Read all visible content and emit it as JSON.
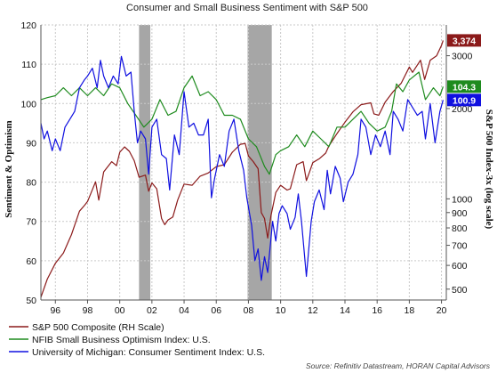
{
  "chart_data": {
    "type": "line",
    "title": "Consumer and Small Business Sentiment with S&P 500",
    "ylabel_left": "Sentiment & Optimism",
    "ylabel_right": "S&P 500 Index-3x (log scale)",
    "x_ticks": [
      "96",
      "98",
      "00",
      "02",
      "04",
      "06",
      "08",
      "10",
      "12",
      "14",
      "16",
      "18",
      "20"
    ],
    "x_range": [
      1995.1,
      2020.3
    ],
    "y_left_ticks": [
      50,
      60,
      70,
      80,
      90,
      100,
      110,
      120
    ],
    "y_left_range": [
      50,
      120
    ],
    "y_right_ticks": [
      500,
      600,
      700,
      800,
      900,
      1000,
      2000,
      3000
    ],
    "y_right_range": [
      460,
      3800
    ],
    "y_right_scale": "log",
    "grid": true,
    "recessions": [
      [
        2001.2,
        2001.9
      ],
      [
        2007.95,
        2009.45
      ]
    ],
    "series": [
      {
        "name": "S&P 500 Composite (RH Scale)",
        "axis": "right",
        "color": "#8B1A1A",
        "last_value_label": "3,374",
        "points": [
          [
            1995.1,
            470
          ],
          [
            1995.5,
            540
          ],
          [
            1996.0,
            610
          ],
          [
            1996.5,
            660
          ],
          [
            1997.0,
            760
          ],
          [
            1997.5,
            910
          ],
          [
            1997.8,
            950
          ],
          [
            1998.0,
            980
          ],
          [
            1998.5,
            1140
          ],
          [
            1998.7,
            990
          ],
          [
            1999.0,
            1230
          ],
          [
            1999.5,
            1330
          ],
          [
            1999.8,
            1290
          ],
          [
            2000.0,
            1430
          ],
          [
            2000.3,
            1490
          ],
          [
            2000.6,
            1440
          ],
          [
            2000.9,
            1340
          ],
          [
            2001.2,
            1180
          ],
          [
            2001.6,
            1200
          ],
          [
            2001.8,
            1060
          ],
          [
            2002.0,
            1130
          ],
          [
            2002.3,
            1080
          ],
          [
            2002.6,
            860
          ],
          [
            2002.8,
            820
          ],
          [
            2003.0,
            850
          ],
          [
            2003.3,
            870
          ],
          [
            2003.6,
            990
          ],
          [
            2004.0,
            1120
          ],
          [
            2004.5,
            1110
          ],
          [
            2005.0,
            1190
          ],
          [
            2005.5,
            1220
          ],
          [
            2006.0,
            1280
          ],
          [
            2006.5,
            1300
          ],
          [
            2007.0,
            1430
          ],
          [
            2007.5,
            1520
          ],
          [
            2007.8,
            1530
          ],
          [
            2008.0,
            1390
          ],
          [
            2008.3,
            1330
          ],
          [
            2008.6,
            1260
          ],
          [
            2008.8,
            900
          ],
          [
            2009.0,
            860
          ],
          [
            2009.2,
            740
          ],
          [
            2009.4,
            880
          ],
          [
            2009.7,
            1050
          ],
          [
            2010.0,
            1110
          ],
          [
            2010.4,
            1070
          ],
          [
            2010.6,
            1080
          ],
          [
            2011.0,
            1300
          ],
          [
            2011.4,
            1330
          ],
          [
            2011.6,
            1150
          ],
          [
            2011.8,
            1230
          ],
          [
            2012.0,
            1320
          ],
          [
            2012.4,
            1360
          ],
          [
            2012.8,
            1420
          ],
          [
            2013.0,
            1500
          ],
          [
            2013.5,
            1650
          ],
          [
            2014.0,
            1800
          ],
          [
            2014.5,
            1950
          ],
          [
            2015.0,
            2060
          ],
          [
            2015.6,
            2090
          ],
          [
            2015.8,
            1920
          ],
          [
            2016.1,
            1900
          ],
          [
            2016.5,
            2100
          ],
          [
            2017.0,
            2280
          ],
          [
            2017.5,
            2430
          ],
          [
            2018.0,
            2750
          ],
          [
            2018.2,
            2640
          ],
          [
            2018.7,
            2900
          ],
          [
            2018.95,
            2500
          ],
          [
            2019.3,
            2900
          ],
          [
            2019.7,
            3000
          ],
          [
            2020.0,
            3250
          ],
          [
            2020.1,
            3374
          ]
        ]
      },
      {
        "name": "NFIB Small Business Optimism Index: U.S.",
        "axis": "left",
        "color": "#1E8B1E",
        "last_value_label": "104.3",
        "points": [
          [
            1995.1,
            101
          ],
          [
            1995.5,
            101.5
          ],
          [
            1996.0,
            102
          ],
          [
            1996.5,
            104
          ],
          [
            1997.0,
            102
          ],
          [
            1997.5,
            104
          ],
          [
            1998.0,
            102
          ],
          [
            1998.5,
            104
          ],
          [
            1999.0,
            102
          ],
          [
            1999.5,
            105
          ],
          [
            2000.0,
            104
          ],
          [
            2000.5,
            100
          ],
          [
            2001.0,
            97
          ],
          [
            2001.5,
            94
          ],
          [
            2002.0,
            96
          ],
          [
            2002.5,
            101
          ],
          [
            2003.0,
            97
          ],
          [
            2003.5,
            98
          ],
          [
            2004.0,
            104
          ],
          [
            2004.5,
            107
          ],
          [
            2005.0,
            102
          ],
          [
            2005.5,
            103
          ],
          [
            2006.0,
            101
          ],
          [
            2006.5,
            97
          ],
          [
            2007.0,
            97
          ],
          [
            2007.5,
            96
          ],
          [
            2008.0,
            91
          ],
          [
            2008.5,
            89
          ],
          [
            2009.0,
            84
          ],
          [
            2009.3,
            82
          ],
          [
            2009.7,
            87
          ],
          [
            2010.0,
            88
          ],
          [
            2010.5,
            89
          ],
          [
            2011.0,
            92
          ],
          [
            2011.5,
            89
          ],
          [
            2012.0,
            93
          ],
          [
            2012.5,
            91
          ],
          [
            2013.0,
            89
          ],
          [
            2013.5,
            94
          ],
          [
            2014.0,
            94
          ],
          [
            2014.5,
            96
          ],
          [
            2015.0,
            98
          ],
          [
            2015.5,
            95
          ],
          [
            2016.0,
            93
          ],
          [
            2016.5,
            94
          ],
          [
            2016.9,
            98
          ],
          [
            2017.2,
            105
          ],
          [
            2017.6,
            103
          ],
          [
            2018.0,
            106
          ],
          [
            2018.6,
            108
          ],
          [
            2019.0,
            101
          ],
          [
            2019.5,
            104
          ],
          [
            2019.9,
            102
          ],
          [
            2020.1,
            104.3
          ]
        ]
      },
      {
        "name": "University of Michigan: Consumer Sentiment Index: U.S.",
        "axis": "left",
        "color": "#1010E0",
        "last_value_label": "100.9",
        "points": [
          [
            1995.1,
            95
          ],
          [
            1995.3,
            91
          ],
          [
            1995.5,
            93
          ],
          [
            1995.8,
            88
          ],
          [
            1996.0,
            91
          ],
          [
            1996.3,
            88
          ],
          [
            1996.6,
            94
          ],
          [
            1996.9,
            96
          ],
          [
            1997.2,
            98
          ],
          [
            1997.5,
            104
          ],
          [
            1997.8,
            106
          ],
          [
            1998.0,
            107
          ],
          [
            1998.3,
            109
          ],
          [
            1998.6,
            104
          ],
          [
            1998.8,
            111
          ],
          [
            1999.0,
            107
          ],
          [
            1999.3,
            104
          ],
          [
            1999.6,
            107
          ],
          [
            1999.9,
            105
          ],
          [
            2000.1,
            112
          ],
          [
            2000.4,
            107
          ],
          [
            2000.7,
            108
          ],
          [
            2000.9,
            98
          ],
          [
            2001.1,
            90
          ],
          [
            2001.3,
            93
          ],
          [
            2001.6,
            91
          ],
          [
            2001.8,
            82
          ],
          [
            2002.0,
            94
          ],
          [
            2002.3,
            96
          ],
          [
            2002.6,
            87
          ],
          [
            2002.9,
            86
          ],
          [
            2003.1,
            78
          ],
          [
            2003.4,
            92
          ],
          [
            2003.7,
            87
          ],
          [
            2004.0,
            103
          ],
          [
            2004.3,
            94
          ],
          [
            2004.6,
            95
          ],
          [
            2004.9,
            92
          ],
          [
            2005.2,
            92
          ],
          [
            2005.5,
            96
          ],
          [
            2005.7,
            76
          ],
          [
            2005.9,
            81
          ],
          [
            2006.2,
            87
          ],
          [
            2006.5,
            84
          ],
          [
            2006.8,
            93
          ],
          [
            2007.1,
            96
          ],
          [
            2007.4,
            88
          ],
          [
            2007.7,
            83
          ],
          [
            2007.9,
            76
          ],
          [
            2008.2,
            69
          ],
          [
            2008.4,
            60
          ],
          [
            2008.6,
            63
          ],
          [
            2008.8,
            55
          ],
          [
            2009.0,
            61
          ],
          [
            2009.2,
            57
          ],
          [
            2009.5,
            70
          ],
          [
            2009.7,
            65
          ],
          [
            2009.9,
            72
          ],
          [
            2010.1,
            74
          ],
          [
            2010.4,
            72
          ],
          [
            2010.6,
            68
          ],
          [
            2010.9,
            71
          ],
          [
            2011.1,
            77
          ],
          [
            2011.3,
            70
          ],
          [
            2011.6,
            56
          ],
          [
            2011.9,
            70
          ],
          [
            2012.1,
            75
          ],
          [
            2012.4,
            78
          ],
          [
            2012.7,
            73
          ],
          [
            2012.9,
            83
          ],
          [
            2013.1,
            77
          ],
          [
            2013.4,
            84
          ],
          [
            2013.7,
            81
          ],
          [
            2013.9,
            75
          ],
          [
            2014.2,
            80
          ],
          [
            2014.5,
            82
          ],
          [
            2014.8,
            87
          ],
          [
            2015.0,
            96
          ],
          [
            2015.3,
            94
          ],
          [
            2015.6,
            87
          ],
          [
            2015.9,
            92
          ],
          [
            2016.2,
            89
          ],
          [
            2016.5,
            93
          ],
          [
            2016.8,
            87
          ],
          [
            2017.0,
            98
          ],
          [
            2017.3,
            96
          ],
          [
            2017.6,
            93
          ],
          [
            2017.9,
            101
          ],
          [
            2018.2,
            99
          ],
          [
            2018.5,
            97
          ],
          [
            2018.8,
            98
          ],
          [
            2019.0,
            91
          ],
          [
            2019.3,
            100
          ],
          [
            2019.6,
            90
          ],
          [
            2019.9,
            98
          ],
          [
            2020.1,
            100.9
          ]
        ]
      }
    ],
    "source": "Source: Refinitiv Datastream, HORAN Capital Advisors"
  },
  "colors": {
    "recession": "#a6a6a6",
    "grid": "#c9c9c9",
    "axis": "#555555"
  }
}
